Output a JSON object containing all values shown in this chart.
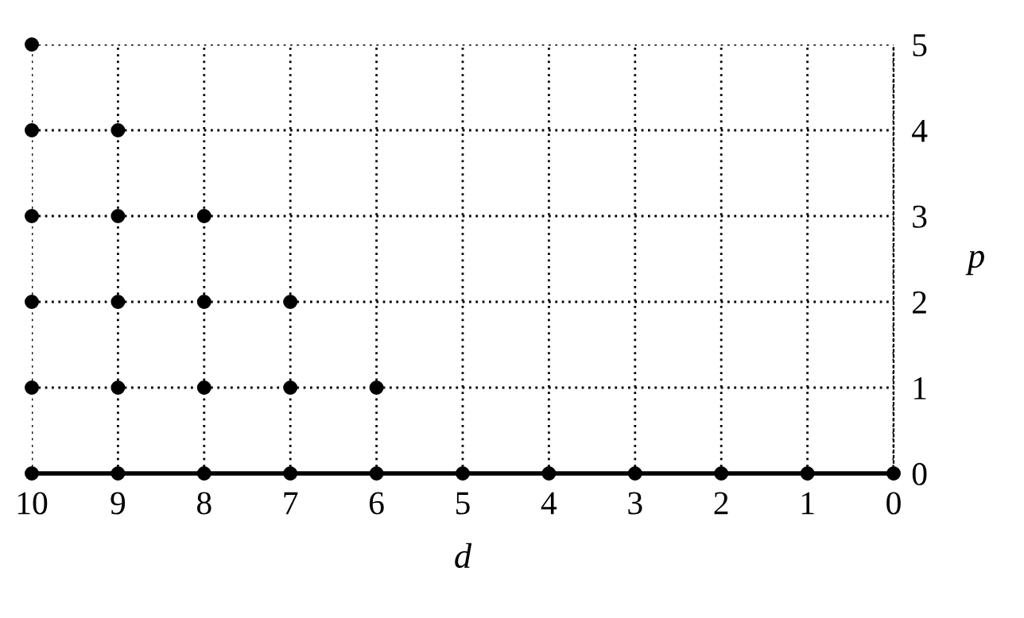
{
  "chart_data": {
    "type": "scatter",
    "xlabel": "d",
    "ylabel": "p",
    "series": [
      {
        "color": "#000000",
        "x": [
          0,
          1,
          2,
          3,
          4,
          5,
          6,
          7,
          8,
          9,
          10,
          6,
          7,
          8,
          9,
          10,
          7,
          8,
          9,
          10,
          8,
          9,
          10,
          9,
          10,
          10
        ],
        "values": [
          0,
          0,
          0,
          0,
          0,
          0,
          0,
          0,
          0,
          0,
          0,
          1,
          1,
          1,
          1,
          1,
          2,
          2,
          2,
          2,
          3,
          3,
          3,
          4,
          4,
          5
        ]
      }
    ],
    "xlim": [
      10,
      0
    ],
    "ylim": [
      0,
      5
    ],
    "xticks": [
      10,
      9,
      8,
      7,
      6,
      5,
      4,
      3,
      2,
      1,
      0
    ],
    "yticks": [
      0,
      1,
      2,
      3,
      4,
      5
    ],
    "grid": true,
    "marker": "circle",
    "legend": false
  }
}
